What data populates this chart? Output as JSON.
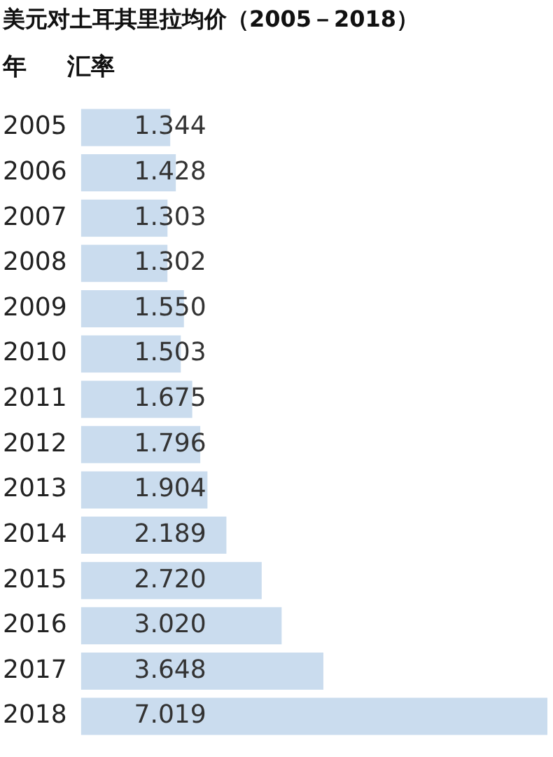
{
  "chart_data": {
    "type": "bar",
    "orientation": "horizontal",
    "title": "美元对土耳其里拉均价（2005－2018）",
    "ylabel": "年",
    "xlabel": "汇率",
    "categories": [
      "2005",
      "2006",
      "2007",
      "2008",
      "2009",
      "2010",
      "2011",
      "2012",
      "2013",
      "2014",
      "2015",
      "2016",
      "2017",
      "2018"
    ],
    "values": [
      1.344,
      1.428,
      1.303,
      1.302,
      1.55,
      1.503,
      1.675,
      1.796,
      1.904,
      2.189,
      2.72,
      3.02,
      3.648,
      7.019
    ],
    "value_labels": [
      "1.344",
      "1.428",
      "1.303",
      "1.302",
      "1.550",
      "1.503",
      "1.675",
      "1.796",
      "1.904",
      "2.189",
      "2.720",
      "3.020",
      "3.648",
      "7.019"
    ],
    "color": "#cadcee",
    "tick_labels": "y"
  }
}
